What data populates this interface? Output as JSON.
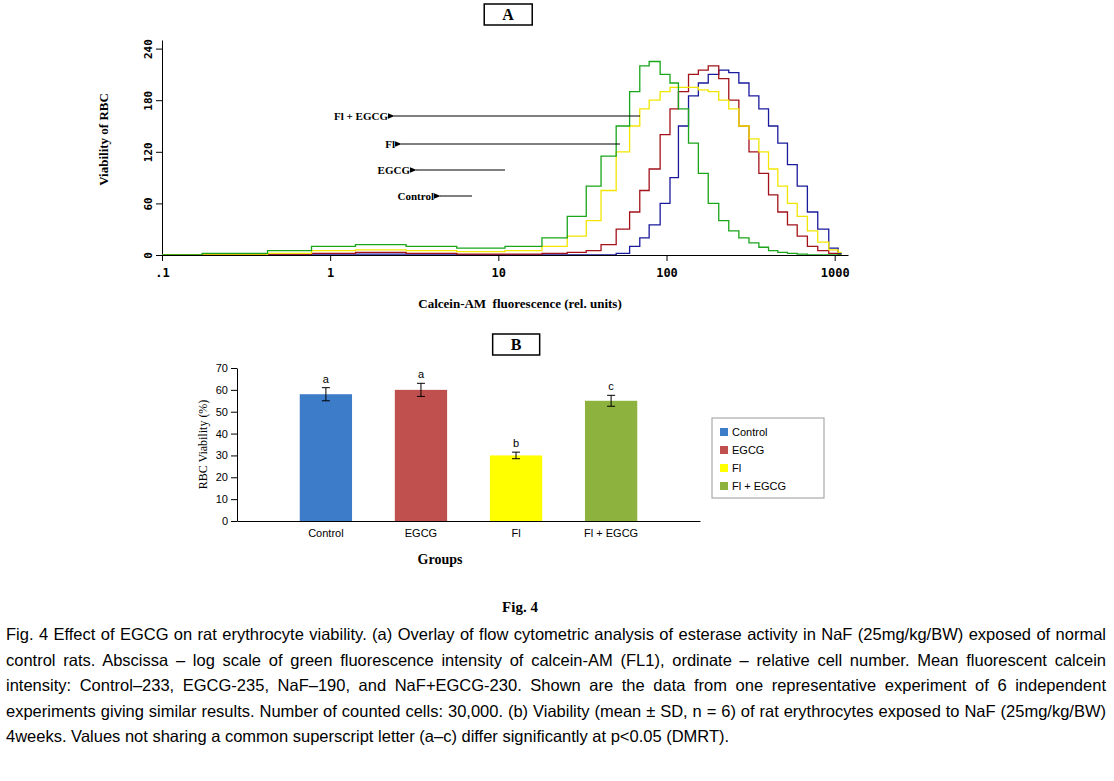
{
  "chart_data": [
    {
      "type": "line",
      "title": "A",
      "x_label": "Calcein-AM  fluorescence (rel. units)",
      "y_label": "Viability of RBC",
      "log": "x",
      "line_style": "step",
      "x": [
        0.1,
        0.3,
        0.6,
        1,
        2,
        4,
        8,
        15,
        22,
        30,
        37,
        45,
        56,
        65,
        74,
        84,
        100,
        110,
        126,
        145,
        165,
        190,
        220,
        250,
        290,
        330,
        380,
        430,
        490,
        560,
        640,
        740,
        850,
        1000,
        1100
      ],
      "series": [
        {
          "name": "Fl + EGCG",
          "color": "#1aa51a",
          "values": [
            0,
            2,
            5,
            10,
            12,
            10,
            8,
            10,
            20,
            45,
            80,
            115,
            150,
            190,
            220,
            225,
            210,
            200,
            170,
            130,
            95,
            60,
            40,
            28,
            20,
            14,
            9,
            5,
            3,
            2,
            1,
            0,
            0,
            0,
            0
          ]
        },
        {
          "name": "Fl",
          "color": "#f2e600",
          "values": [
            0,
            0,
            2,
            5,
            6,
            5,
            4,
            5,
            10,
            22,
            40,
            75,
            120,
            150,
            170,
            180,
            190,
            195,
            195,
            195,
            192,
            190,
            180,
            170,
            150,
            135,
            120,
            100,
            80,
            60,
            45,
            28,
            15,
            6,
            3
          ]
        },
        {
          "name": "EGCG",
          "color": "#a3121a",
          "values": [
            0,
            0,
            1,
            2,
            3,
            2,
            1,
            1,
            2,
            3,
            5,
            12,
            30,
            50,
            75,
            100,
            140,
            170,
            190,
            210,
            215,
            220,
            205,
            180,
            150,
            120,
            95,
            70,
            50,
            35,
            22,
            10,
            5,
            2,
            0
          ]
        },
        {
          "name": "Control",
          "color": "#1a1a9c",
          "values": [
            0,
            0,
            0,
            1,
            1,
            1,
            0,
            0,
            0,
            0,
            0,
            0,
            2,
            10,
            20,
            35,
            60,
            90,
            150,
            185,
            200,
            210,
            215,
            212,
            200,
            185,
            170,
            150,
            130,
            105,
            80,
            50,
            30,
            8,
            2
          ]
        }
      ],
      "xlim": [
        0.1,
        1200
      ],
      "xticks": [
        {
          "value": 0.1,
          "label": ".1"
        },
        1,
        10,
        100,
        1000
      ],
      "ylim": [
        0,
        250
      ],
      "yticks": [
        0,
        60,
        120,
        180,
        240
      ]
    },
    {
      "type": "bar",
      "title": "B",
      "x_label": "Groups",
      "y_label": "RBC Viability (%)",
      "categories": [
        "Control",
        "EGCG",
        "Fl",
        "Fl + EGCG"
      ],
      "values": [
        58,
        60,
        30,
        55
      ],
      "errors": [
        3,
        3,
        1.5,
        2.5
      ],
      "significance": [
        "a",
        "a",
        "b",
        "c"
      ],
      "colors": [
        "#3d7cc9",
        "#c0504d",
        "#ffff00",
        "#8db33e"
      ],
      "ylim": [
        0,
        70
      ],
      "yticks": [
        0,
        10,
        20,
        30,
        40,
        50,
        60,
        70
      ],
      "legend": "right"
    }
  ],
  "figure": {
    "label": "Fig. 4",
    "caption": "Fig. 4 Effect of EGCG on rat erythrocyte viability. (a) Overlay of flow cytometric analysis of esterase activity in NaF (25mg/kg/BW) exposed of normal control rats. Abscissa – log scale of green fluorescence intensity of calcein-AM (FL1), ordinate – relative cell number. Mean fluorescent calcein intensity: Control–233, EGCG-235, NaF–190, and NaF+EGCG-230. Shown are the data from one representative experiment of 6 independent experiments giving similar results. Number of counted cells: 30,000. (b) Viability (mean ± SD, n = 6) of rat erythrocytes exposed to NaF (25mg/kg/BW) 4weeks. Values not sharing a common superscript letter (a–c) differ significantly at p<0.05 (DMRT)."
  }
}
